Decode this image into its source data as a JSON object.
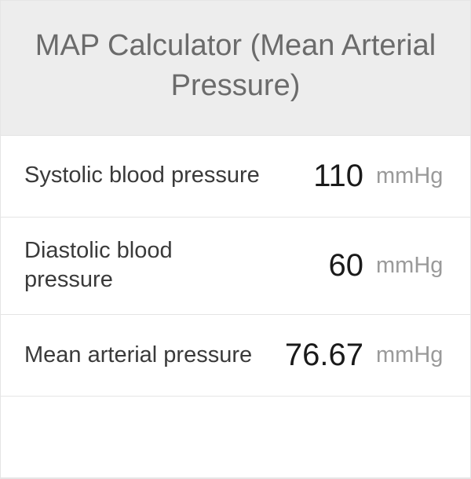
{
  "header": {
    "title": "MAP Calculator (Mean Arterial Pressure)"
  },
  "rows": [
    {
      "label": "Systolic blood pressure",
      "value": "110",
      "unit": "mmHg"
    },
    {
      "label": "Diastolic blood pressure",
      "value": "60",
      "unit": "mmHg"
    },
    {
      "label": "Mean arterial pressure",
      "value": "76.67",
      "unit": "mmHg"
    }
  ],
  "colors": {
    "header_bg": "#ededed",
    "header_text": "#6b6b6b",
    "border": "#e5e5e5",
    "label_text": "#3a3a3a",
    "value_text": "#1a1a1a",
    "unit_text": "#9a9a9a",
    "row_bg": "#ffffff"
  },
  "typography": {
    "title_fontsize": 38,
    "label_fontsize": 29,
    "value_fontsize": 40,
    "unit_fontsize": 29
  }
}
